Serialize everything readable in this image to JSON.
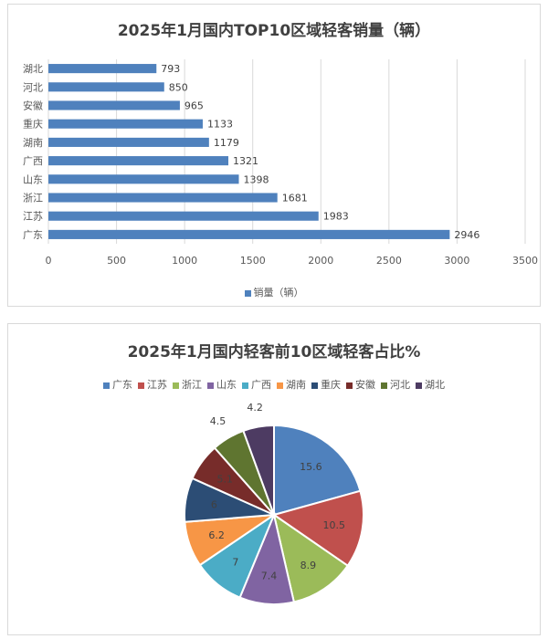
{
  "chart_data": [
    {
      "type": "bar",
      "orientation": "horizontal",
      "title": "2025年1月国内TOP10区域轻客销量（辆）",
      "categories": [
        "湖北",
        "河北",
        "安徽",
        "重庆",
        "湖南",
        "广西",
        "山东",
        "浙江",
        "江苏",
        "广东"
      ],
      "series": [
        {
          "name": "销量（辆）",
          "values": [
            793,
            850,
            965,
            1133,
            1179,
            1321,
            1398,
            1681,
            1983,
            2946
          ],
          "color": "#4f81bd"
        }
      ],
      "xlim": [
        0,
        3500
      ],
      "x_ticks": [
        "0",
        "500",
        "1000",
        "1500",
        "2000",
        "2500",
        "3000",
        "3500"
      ],
      "grid": "vertical",
      "legend": "bottom"
    },
    {
      "type": "pie",
      "title": "2025年1月国内轻客前10区域轻客占比%",
      "labels": [
        "广东",
        "江苏",
        "浙江",
        "山东",
        "广西",
        "湖南",
        "重庆",
        "安徽",
        "河北",
        "湖北"
      ],
      "values": [
        15.6,
        10.5,
        8.9,
        7.4,
        7,
        6.2,
        6,
        5.1,
        4.5,
        4.2
      ],
      "value_labels": [
        "15.6",
        "10.5",
        "8.9",
        "7.4",
        "7",
        "6.2",
        "6",
        "5.1",
        "4.5",
        "4.2"
      ],
      "colors": [
        "#4f81bd",
        "#c0504d",
        "#9bbb59",
        "#8064a2",
        "#4bacc6",
        "#f79646",
        "#2c4d75",
        "#772c2a",
        "#5f7530",
        "#4d3b62"
      ],
      "legend": "top"
    }
  ]
}
